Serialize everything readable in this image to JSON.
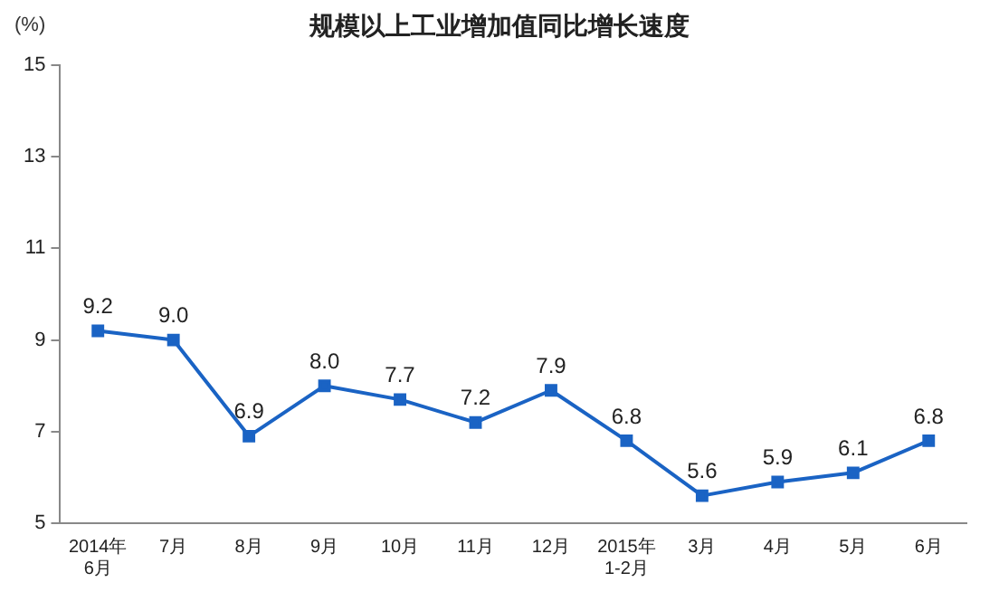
{
  "chart_data": {
    "type": "line",
    "title": "规模以上工业增加值同比增长速度",
    "ylabel": "(%)",
    "categories": [
      "2014年\n6月",
      "7月",
      "8月",
      "9月",
      "10月",
      "11月",
      "12月",
      "2015年\n1-2月",
      "3月",
      "4月",
      "5月",
      "6月"
    ],
    "series": [
      {
        "color": "#1a63c4",
        "values": [
          9.2,
          9.0,
          6.9,
          8.0,
          7.7,
          7.2,
          7.9,
          6.8,
          5.6,
          5.9,
          6.1,
          6.8
        ],
        "value_labels": [
          "9.2",
          "9.0",
          "6.9",
          "8.0",
          "7.7",
          "7.2",
          "7.9",
          "6.8",
          "5.6",
          "5.9",
          "6.1",
          "6.8"
        ]
      }
    ],
    "ylim": [
      5,
      15
    ],
    "yticks": [
      5,
      7,
      9,
      11,
      13,
      15
    ],
    "grid": false,
    "legend": false,
    "marker": "square",
    "line_style": "solid"
  }
}
